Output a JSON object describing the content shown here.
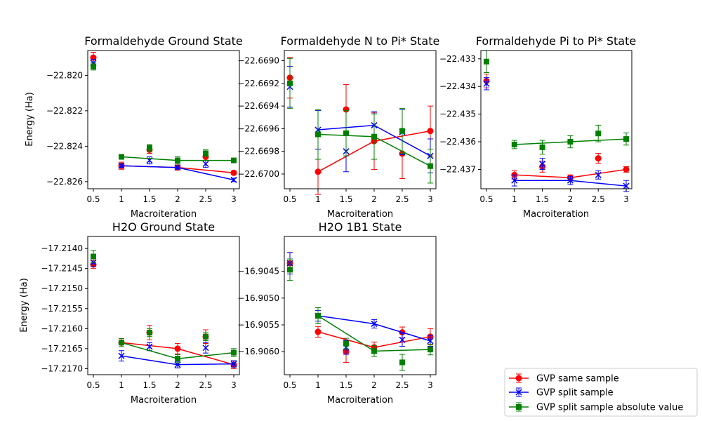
{
  "legend": {
    "placement": "bottom-right",
    "entries": [
      {
        "label": "GVP same sample",
        "color": "#ff0000",
        "marker": "circle"
      },
      {
        "label": "GVP split sample",
        "color": "#0000ff",
        "marker": "x"
      },
      {
        "label": "GVP split sample absolute value",
        "color": "#008000",
        "marker": "square"
      }
    ]
  },
  "chart_data": [
    {
      "type": "line",
      "title": "Formaldehyde Ground State",
      "xlabel": "Macroiteration",
      "ylabel": "Energy (Ha)",
      "xlim": [
        0.4,
        3.1
      ],
      "ylim": [
        -22.8264,
        -22.8186
      ],
      "xticks": [
        0.5,
        1,
        1.5,
        2,
        2.5,
        3
      ],
      "xticklabels": [
        "0.5",
        "1",
        "1.5",
        "2",
        "2.5",
        "3"
      ],
      "yticks": [
        -22.826,
        -22.824,
        -22.822,
        -22.82
      ],
      "yticklabels": [
        "−22.826",
        "−22.824",
        "−22.822",
        "−22.820"
      ],
      "series": [
        {
          "name": "GVP same sample",
          "color": "#ff0000",
          "marker": "circle",
          "points": [
            {
              "x": 0.5,
              "y": -22.819,
              "err": 0.0003
            },
            {
              "x": 1.5,
              "y": -22.8242,
              "err": 0.0002
            },
            {
              "x": 2.5,
              "y": -22.8246,
              "err": 0.0002
            }
          ],
          "line": [
            {
              "x": 1,
              "y": -22.8251,
              "err": 0.0002
            },
            {
              "x": 2,
              "y": -22.8252,
              "err": 0.0001
            },
            {
              "x": 3,
              "y": -22.8255,
              "err": 0.0001
            }
          ]
        },
        {
          "name": "GVP split sample",
          "color": "#0000ff",
          "marker": "x",
          "points": [
            {
              "x": 0.5,
              "y": -22.8193,
              "err": 0.0002
            },
            {
              "x": 1.5,
              "y": -22.8248,
              "err": 0.0002
            },
            {
              "x": 2.5,
              "y": -22.825,
              "err": 0.0002
            }
          ],
          "line": [
            {
              "x": 1,
              "y": -22.8251,
              "err": 0.0001
            },
            {
              "x": 2,
              "y": -22.8252,
              "err": 0.0001
            },
            {
              "x": 3,
              "y": -22.8259,
              "err": 0.0001
            }
          ]
        },
        {
          "name": "GVP split sample absolute value",
          "color": "#008000",
          "marker": "square",
          "points": [
            {
              "x": 0.5,
              "y": -22.8195,
              "err": 0.0002
            },
            {
              "x": 1.5,
              "y": -22.8241,
              "err": 0.0002
            },
            {
              "x": 2.5,
              "y": -22.8244,
              "err": 0.0002
            }
          ],
          "line": [
            {
              "x": 1,
              "y": -22.8246,
              "err": 0.0001
            },
            {
              "x": 2,
              "y": -22.8248,
              "err": 0.0002
            },
            {
              "x": 3,
              "y": -22.8248,
              "err": 0.0001
            }
          ]
        }
      ]
    },
    {
      "type": "line",
      "title": "Formaldehyde N to Pi* State",
      "xlabel": "Macroiteration",
      "ylabel": "",
      "xlim": [
        0.4,
        3.1
      ],
      "ylim": [
        -22.67013,
        -22.66891
      ],
      "xticks": [
        0.5,
        1,
        1.5,
        2,
        2.5,
        3
      ],
      "xticklabels": [
        "0.5",
        "1",
        "1.5",
        "2",
        "2.5",
        "3"
      ],
      "yticks": [
        -22.67,
        -22.6698,
        -22.6696,
        -22.6694,
        -22.6692,
        -22.669
      ],
      "yticklabels": [
        "−22.6700",
        "−22.6698",
        "−22.6696",
        "−22.6694",
        "−22.6692",
        "−22.6690"
      ],
      "series": [
        {
          "name": "GVP same sample",
          "color": "#ff0000",
          "marker": "circle",
          "points": [
            {
              "x": 0.5,
              "y": -22.66915,
              "err": 0.00018
            },
            {
              "x": 1.5,
              "y": -22.66943,
              "err": 0.00022
            },
            {
              "x": 2.5,
              "y": -22.66982,
              "err": 0.00022
            }
          ],
          "line": [
            {
              "x": 1,
              "y": -22.66998,
              "err": 0.0002
            },
            {
              "x": 2,
              "y": -22.66971,
              "err": 0.00025
            },
            {
              "x": 3,
              "y": -22.66962,
              "err": 0.00022
            }
          ]
        },
        {
          "name": "GVP split sample",
          "color": "#0000ff",
          "marker": "x",
          "points": [
            {
              "x": 0.5,
              "y": -22.66923,
              "err": 0.00018
            },
            {
              "x": 1.5,
              "y": -22.6698,
              "err": 0.00018
            },
            {
              "x": 2.5,
              "y": -22.66963,
              "err": 0.0002
            }
          ],
          "line": [
            {
              "x": 1,
              "y": -22.66961,
              "err": 0.00017
            },
            {
              "x": 2,
              "y": -22.66957,
              "err": 0.00012
            },
            {
              "x": 3,
              "y": -22.66984,
              "err": 0.00015
            }
          ]
        },
        {
          "name": "GVP split sample absolute value",
          "color": "#008000",
          "marker": "square",
          "points": [
            {
              "x": 0.5,
              "y": -22.6692,
              "err": 0.00022
            },
            {
              "x": 1.5,
              "y": -22.66964,
              "err": 0.0002
            },
            {
              "x": 2.5,
              "y": -22.66962,
              "err": 0.0002
            }
          ],
          "line": [
            {
              "x": 1,
              "y": -22.66965,
              "err": 0.00022
            },
            {
              "x": 2,
              "y": -22.66967,
              "err": 0.0002
            },
            {
              "x": 3,
              "y": -22.66993,
              "err": 0.00015
            }
          ]
        }
      ]
    },
    {
      "type": "line",
      "title": "Formaldehyde Pi to Pi* State",
      "xlabel": "Macroiteration",
      "ylabel": "",
      "xlim": [
        0.4,
        3.1
      ],
      "ylim": [
        -22.4377,
        -22.4327
      ],
      "xticks": [
        0.5,
        1,
        1.5,
        2,
        2.5,
        3
      ],
      "xticklabels": [
        "0.5",
        "1",
        "1.5",
        "2",
        "2.5",
        "3"
      ],
      "yticks": [
        -22.437,
        -22.436,
        -22.435,
        -22.434,
        -22.433
      ],
      "yticklabels": [
        "−22.437",
        "−22.436",
        "−22.435",
        "−22.434",
        "−22.433"
      ],
      "series": [
        {
          "name": "GVP same sample",
          "color": "#ff0000",
          "marker": "circle",
          "points": [
            {
              "x": 0.5,
              "y": -22.4338,
              "err": 0.00025
            },
            {
              "x": 1.5,
              "y": -22.4369,
              "err": 0.0002
            },
            {
              "x": 2.5,
              "y": -22.4366,
              "err": 0.00018
            }
          ],
          "line": [
            {
              "x": 1,
              "y": -22.4372,
              "err": 0.00015
            },
            {
              "x": 2,
              "y": -22.4373,
              "err": 0.0001
            },
            {
              "x": 3,
              "y": -22.437,
              "err": 0.0001
            }
          ]
        },
        {
          "name": "GVP split sample",
          "color": "#0000ff",
          "marker": "x",
          "points": [
            {
              "x": 0.5,
              "y": -22.4339,
              "err": 0.00022
            },
            {
              "x": 1.5,
              "y": -22.4368,
              "err": 0.0002
            },
            {
              "x": 2.5,
              "y": -22.4372,
              "err": 0.00015
            }
          ],
          "line": [
            {
              "x": 1,
              "y": -22.4374,
              "err": 0.0002
            },
            {
              "x": 2,
              "y": -22.4374,
              "err": 0.00015
            },
            {
              "x": 3,
              "y": -22.4376,
              "err": 0.0002
            }
          ]
        },
        {
          "name": "GVP split sample absolute value",
          "color": "#008000",
          "marker": "square",
          "points": [
            {
              "x": 0.5,
              "y": -22.4331,
              "err": 0.0004
            },
            {
              "x": 1.5,
              "y": -22.4362,
              "err": 0.00025
            },
            {
              "x": 2.5,
              "y": -22.4357,
              "err": 0.0003
            }
          ],
          "line": [
            {
              "x": 1,
              "y": -22.4361,
              "err": 0.00015
            },
            {
              "x": 2,
              "y": -22.436,
              "err": 0.00022
            },
            {
              "x": 3,
              "y": -22.4359,
              "err": 0.00022
            }
          ]
        }
      ]
    },
    {
      "type": "line",
      "title": "H2O Ground State",
      "xlabel": "Macroiteration",
      "ylabel": "Energy (Ha)",
      "xlim": [
        0.4,
        3.1
      ],
      "ylim": [
        -17.21715,
        -17.2137
      ],
      "xticks": [
        0.5,
        1,
        1.5,
        2,
        2.5,
        3
      ],
      "xticklabels": [
        "0.5",
        "1",
        "1.5",
        "2",
        "2.5",
        "3"
      ],
      "yticks": [
        -17.217,
        -17.2165,
        -17.216,
        -17.2155,
        -17.215,
        -17.2145,
        -17.214
      ],
      "yticklabels": [
        "−17.2170",
        "−17.2165",
        "−17.2160",
        "−17.2155",
        "−17.2150",
        "−17.2145",
        "−17.2140"
      ],
      "series": [
        {
          "name": "GVP same sample",
          "color": "#ff0000",
          "marker": "circle",
          "points": [
            {
              "x": 0.5,
              "y": -17.2144,
              "err": 0.0001
            },
            {
              "x": 1.5,
              "y": -17.2161,
              "err": 0.00018
            },
            {
              "x": 2.5,
              "y": -17.2162,
              "err": 0.00017
            }
          ],
          "line": [
            {
              "x": 1,
              "y": -17.21635,
              "err": 0.0001
            },
            {
              "x": 2,
              "y": -17.2165,
              "err": 0.00013
            },
            {
              "x": 3,
              "y": -17.2169,
              "err": 0.0001
            }
          ]
        },
        {
          "name": "GVP split sample",
          "color": "#0000ff",
          "marker": "x",
          "points": [
            {
              "x": 0.5,
              "y": -17.21435,
              "err": 0.0001
            },
            {
              "x": 1.5,
              "y": -17.21645,
              "err": 0.0001
            },
            {
              "x": 2.5,
              "y": -17.21648,
              "err": 0.00013
            }
          ],
          "line": [
            {
              "x": 1,
              "y": -17.21668,
              "err": 0.00013
            },
            {
              "x": 2,
              "y": -17.2169,
              "err": 8e-05
            },
            {
              "x": 3,
              "y": -17.21688,
              "err": 8e-05
            }
          ]
        },
        {
          "name": "GVP split sample absolute value",
          "color": "#008000",
          "marker": "square",
          "points": [
            {
              "x": 0.5,
              "y": -17.2142,
              "err": 0.00015
            },
            {
              "x": 1.5,
              "y": -17.2161,
              "err": 0.0001
            },
            {
              "x": 2.5,
              "y": -17.2162,
              "err": 0.0001
            }
          ],
          "line": [
            {
              "x": 1,
              "y": -17.21635,
              "err": 0.0001
            },
            {
              "x": 2,
              "y": -17.21675,
              "err": 0.0001
            },
            {
              "x": 3,
              "y": -17.2166,
              "err": 0.0001
            }
          ]
        }
      ]
    },
    {
      "type": "line",
      "title": "H2O 1B1 State",
      "xlabel": "Macroiteration",
      "ylabel": "",
      "xlim": [
        0.4,
        3.1
      ],
      "ylim": [
        -16.90643,
        -16.90385
      ],
      "xticks": [
        0.5,
        1,
        1.5,
        2,
        2.5,
        3
      ],
      "xticklabels": [
        "0.5",
        "1",
        "1.5",
        "2",
        "2.5",
        "3"
      ],
      "yticks": [
        -16.906,
        -16.9055,
        -16.905,
        -16.9045
      ],
      "yticklabels": [
        "−16.9060",
        "−16.9055",
        "−16.9050",
        "−16.9045"
      ],
      "series": [
        {
          "name": "GVP same sample",
          "color": "#ff0000",
          "marker": "circle",
          "points": [
            {
              "x": 0.5,
              "y": -16.90435,
              "err": 0.0002
            },
            {
              "x": 1.5,
              "y": -16.906,
              "err": 0.0002
            },
            {
              "x": 2.5,
              "y": -16.90564,
              "err": 0.0001
            }
          ],
          "line": [
            {
              "x": 1,
              "y": -16.90563,
              "err": 0.0001
            },
            {
              "x": 2,
              "y": -16.90592,
              "err": 0.0001
            },
            {
              "x": 3,
              "y": -16.90572,
              "err": 0.00015
            }
          ]
        },
        {
          "name": "GVP split sample",
          "color": "#0000ff",
          "marker": "x",
          "points": [
            {
              "x": 0.5,
              "y": -16.90435,
              "err": 0.0002
            },
            {
              "x": 1.5,
              "y": -16.90592,
              "err": 0.00013
            },
            {
              "x": 2.5,
              "y": -16.90578,
              "err": 0.00012
            }
          ],
          "line": [
            {
              "x": 1,
              "y": -16.90533,
              "err": 0.0001
            },
            {
              "x": 2,
              "y": -16.90548,
              "err": 8e-05
            },
            {
              "x": 3,
              "y": -16.9058,
              "err": 0.0001
            }
          ]
        },
        {
          "name": "GVP split sample absolute value",
          "color": "#008000",
          "marker": "square",
          "points": [
            {
              "x": 0.5,
              "y": -16.90447,
              "err": 0.0002
            },
            {
              "x": 1.5,
              "y": -16.90585,
              "err": 0.0001
            },
            {
              "x": 2.5,
              "y": -16.9062,
              "err": 0.00015
            }
          ],
          "line": [
            {
              "x": 1,
              "y": -16.90533,
              "err": 0.00015
            },
            {
              "x": 2,
              "y": -16.90599,
              "err": 0.0001
            },
            {
              "x": 3,
              "y": -16.90596,
              "err": 0.0001
            }
          ]
        }
      ]
    }
  ]
}
